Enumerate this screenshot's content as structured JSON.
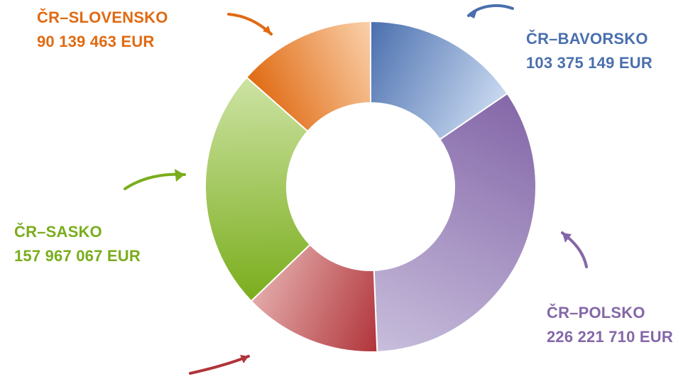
{
  "chart_data": {
    "type": "pie",
    "variant": "donut",
    "series": [
      {
        "name": "ČR–BAVORSKO",
        "label": "ČR–BAVORSKO",
        "value_text": "103 375 149  EUR",
        "value": 103375149,
        "color": "#4a6fae",
        "color_light": "#c9d9f0"
      },
      {
        "name": "ČR–POLSKO",
        "label": "ČR–POLSKO",
        "value_text": "226 221 710  EUR",
        "value": 226221710,
        "color": "#8467a8",
        "color_light": "#c8bedc"
      },
      {
        "name": "",
        "label": "",
        "value_text": "",
        "value": 90000000,
        "color": "#b0343a",
        "color_light": "#e3aaa9"
      },
      {
        "name": "ČR–SASKO",
        "label": "ČR–SASKO",
        "value_text": "157 967 067  EUR",
        "value": 157967067,
        "color": "#7aad1c",
        "color_light": "#cde3a4"
      },
      {
        "name": "ČR–SLOVENSKO",
        "label": "ČR–SLOVENSKO",
        "value_text": "90 139 463  EUR",
        "value": 90139463,
        "color": "#e06a12",
        "color_light": "#fad1ab"
      }
    ]
  }
}
